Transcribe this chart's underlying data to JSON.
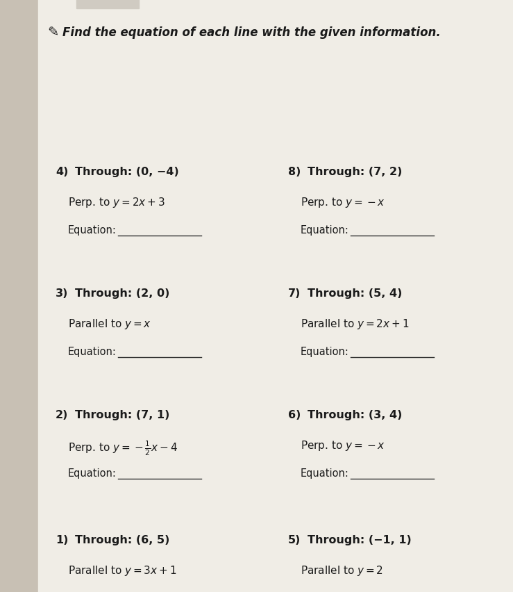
{
  "background_color": "#e8e4dc",
  "paper_color": "#f0ede6",
  "text_color": "#1a1a1a",
  "title": "Find the equation of each line with the given information.",
  "left_edge_color": "#b0a898",
  "problems_left": [
    {
      "num": "1)",
      "through": "Through: (6, 5)",
      "condition": "Parallel to $y = 3x + 1$",
      "is_perp": false
    },
    {
      "num": "2)",
      "through": "Through: (7, 1)",
      "condition": "Perp. to $y = -\\frac{1}{2}x - 4$",
      "is_perp": true
    },
    {
      "num": "3)",
      "through": "Through: (2, 0)",
      "condition": "Parallel to $y = x$",
      "is_perp": false
    },
    {
      "num": "4)",
      "through": "Through: (0, −4)",
      "condition": "Perp. to $y = 2x + 3$",
      "is_perp": true
    }
  ],
  "problems_right": [
    {
      "num": "5)",
      "through": "Through: (−1, 1)",
      "condition": "Parallel to $y = 2$",
      "is_perp": false
    },
    {
      "num": "6)",
      "through": "Through: (3, 4)",
      "condition": "Perp. to $y = -x$",
      "is_perp": true
    },
    {
      "num": "7)",
      "through": "Through: (5, 4)",
      "condition": "Parallel to $y = 2x + 1$",
      "is_perp": false
    },
    {
      "num": "8)",
      "through": "Through: (7, 2)",
      "condition": "Perp. to $y = -x$",
      "is_perp": true
    }
  ]
}
